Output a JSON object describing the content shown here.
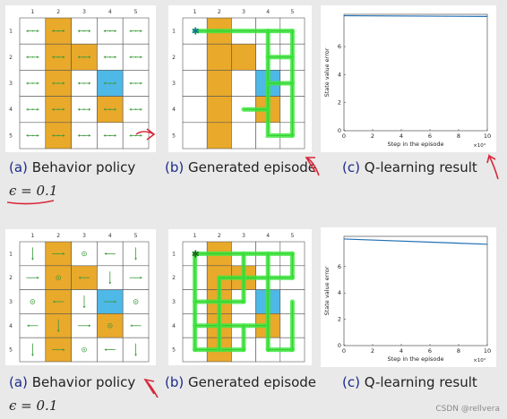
{
  "grid": {
    "col_labels": [
      "1",
      "2",
      "3",
      "4",
      "5"
    ],
    "row_labels": [
      "1",
      "2",
      "3",
      "4",
      "5"
    ],
    "forbidden_cells": [
      [
        1,
        2
      ],
      [
        2,
        2
      ],
      [
        2,
        3
      ],
      [
        3,
        2
      ],
      [
        4,
        2
      ],
      [
        4,
        4
      ],
      [
        5,
        2
      ]
    ],
    "target_cell": [
      3,
      4
    ],
    "colors": {
      "forbidden": "#e9a92a",
      "target": "#4eb8e6",
      "arrow": "#3a9b3a",
      "path": "#3fe63f",
      "grid": "#555555"
    }
  },
  "rows": [
    {
      "behavior_caption": {
        "letter": "(a)",
        "text": "Behavior policy"
      },
      "episode_caption": {
        "letter": "(b)",
        "text": "Generated episode"
      },
      "result_caption": {
        "letter": "(c)",
        "text": "Q-learning result"
      },
      "epsilon": "ϵ = 0.1",
      "start_marker": "✱",
      "chart_data": {
        "type": "line",
        "ylabel": "State value error",
        "xlabel": "Step in the episode",
        "x_exponent": "×10⁴",
        "xlim": [
          0,
          10
        ],
        "ylim": [
          0,
          8.3
        ],
        "xticks": [
          "0",
          "2",
          "4",
          "6",
          "8",
          "10"
        ],
        "yticks": [
          "0",
          "2",
          "4",
          "6"
        ],
        "series": [
          {
            "x": [
              0,
              10
            ],
            "y": [
              8.2,
              8.15
            ]
          }
        ]
      }
    },
    {
      "behavior_caption": {
        "letter": "(a)",
        "text": "Behavior policy"
      },
      "episode_caption": {
        "letter": "(b)",
        "text": "Generated episode"
      },
      "result_caption": {
        "letter": "(c)",
        "text": "Q-learning result"
      },
      "epsilon": "ϵ = 0.1",
      "start_marker": "✱",
      "chart_data": {
        "type": "line",
        "ylabel": "State value error",
        "xlabel": "Step in the episode",
        "x_exponent": "×10⁴",
        "xlim": [
          0,
          10
        ],
        "ylim": [
          0,
          8.3
        ],
        "xticks": [
          "0",
          "2",
          "4",
          "6",
          "8",
          "10"
        ],
        "yticks": [
          "0",
          "2",
          "4",
          "6"
        ],
        "series": [
          {
            "x": [
              0,
              10
            ],
            "y": [
              8.1,
              7.7
            ]
          }
        ]
      }
    }
  ],
  "watermark": "CSDN @rellvera"
}
